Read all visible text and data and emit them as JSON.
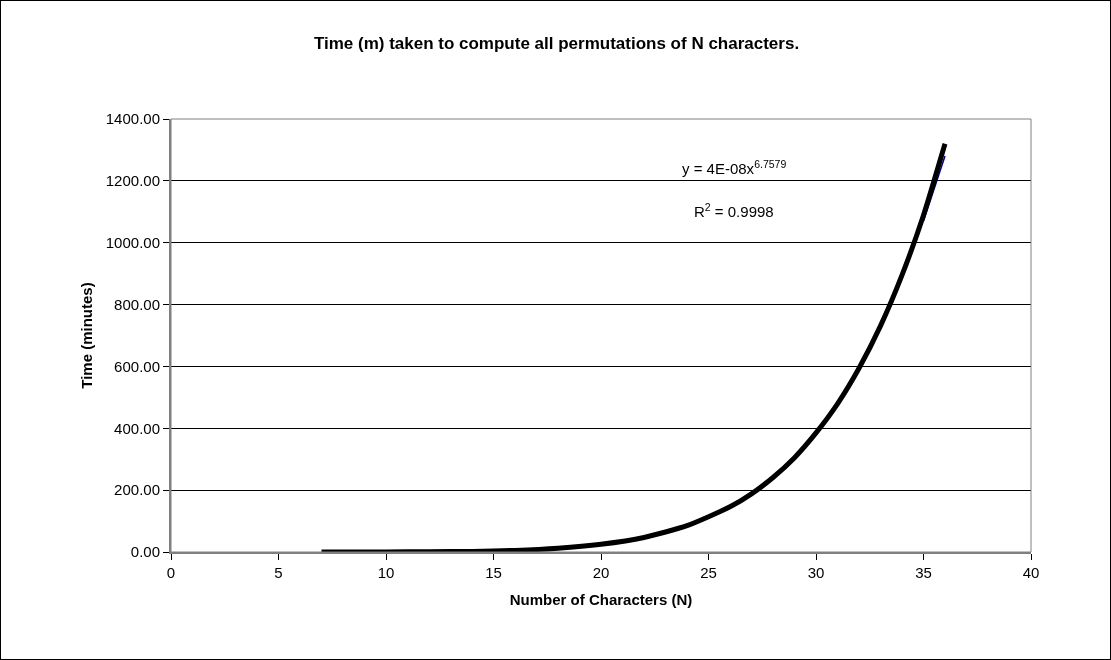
{
  "chart_data": {
    "type": "line",
    "title": "Time (m) taken to compute all permutations of N characters.",
    "xlabel": "Number of Characters (N)",
    "ylabel": "Time (minutes)",
    "annotations": [
      "y = 4E-08x$^{6.7579}$",
      "R$^{2}$ = 0.9998"
    ],
    "x": [
      7,
      10,
      12,
      14,
      16,
      18,
      20,
      22,
      24,
      26,
      27,
      28,
      29,
      30,
      31,
      32,
      33,
      34,
      35,
      36
    ],
    "series": [
      {
        "color": "#000080",
        "values": [
          null,
          null,
          null,
          null,
          null,
          null,
          null,
          null,
          null,
          null,
          null,
          null,
          null,
          null,
          null,
          null,
          null,
          null,
          1070,
          1280
        ]
      },
      {
        "color": "#000000",
        "values": [
          0,
          0,
          1,
          2,
          5,
          12,
          25,
          47,
          85,
          146,
          188,
          241,
          305,
          385,
          479,
          594,
          731,
          895,
          1089,
          1320
        ]
      }
    ],
    "xlim": [
      0,
      40
    ],
    "xticks": [
      0,
      5,
      10,
      15,
      20,
      25,
      30,
      35,
      40
    ],
    "ylim": [
      0,
      1400
    ],
    "yticks": [
      {
        "value": 0,
        "label": "0.00"
      },
      {
        "value": 200,
        "label": "200.00"
      },
      {
        "value": 400,
        "label": "400.00"
      },
      {
        "value": 600,
        "label": "600.00"
      },
      {
        "value": 800,
        "label": "800.00"
      },
      {
        "value": 1000,
        "label": "1000.00"
      },
      {
        "value": 1200,
        "label": "1200.00"
      },
      {
        "value": 1400,
        "label": "1400.00"
      }
    ],
    "grid": "y",
    "marker": "none",
    "line_style": "solid"
  }
}
